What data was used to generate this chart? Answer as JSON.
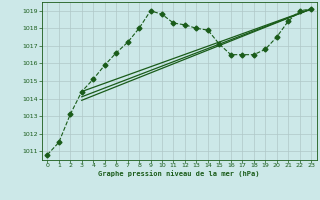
{
  "title": "Graphe pression niveau de la mer (hPa)",
  "bg_color": "#cce8e8",
  "grid_color": "#b0c8c8",
  "line_color": "#1a5c1a",
  "xlim": [
    -0.5,
    23.5
  ],
  "ylim": [
    1010.5,
    1019.5
  ],
  "xticks": [
    0,
    1,
    2,
    3,
    4,
    5,
    6,
    7,
    8,
    9,
    10,
    11,
    12,
    13,
    14,
    15,
    16,
    17,
    18,
    19,
    20,
    21,
    22,
    23
  ],
  "yticks": [
    1011,
    1012,
    1013,
    1014,
    1015,
    1016,
    1017,
    1018,
    1019
  ],
  "series": [
    {
      "x": [
        0,
        1,
        2,
        3,
        4,
        5,
        6,
        7,
        8,
        9,
        10,
        11,
        12,
        13,
        14,
        15,
        16,
        17,
        18,
        19,
        20,
        21,
        22,
        23
      ],
      "y": [
        1010.8,
        1011.5,
        1013.1,
        1014.4,
        1015.1,
        1015.9,
        1016.6,
        1017.2,
        1018.0,
        1019.0,
        1018.8,
        1018.3,
        1018.2,
        1018.0,
        1017.9,
        1017.1,
        1016.5,
        1016.5,
        1016.5,
        1016.8,
        1017.5,
        1018.4,
        1019.0,
        1019.1
      ],
      "marker": "D",
      "markersize": 2.5,
      "linewidth": 0.8,
      "linestyle": "--"
    },
    {
      "x": [
        3,
        23
      ],
      "y": [
        1014.4,
        1019.1
      ],
      "marker": null,
      "markersize": 0,
      "linewidth": 0.9,
      "linestyle": "-"
    },
    {
      "x": [
        3,
        23
      ],
      "y": [
        1013.9,
        1019.1
      ],
      "marker": null,
      "markersize": 0,
      "linewidth": 0.9,
      "linestyle": "-"
    },
    {
      "x": [
        3,
        23
      ],
      "y": [
        1014.1,
        1019.1
      ],
      "marker": null,
      "markersize": 0,
      "linewidth": 0.9,
      "linestyle": "-"
    }
  ]
}
